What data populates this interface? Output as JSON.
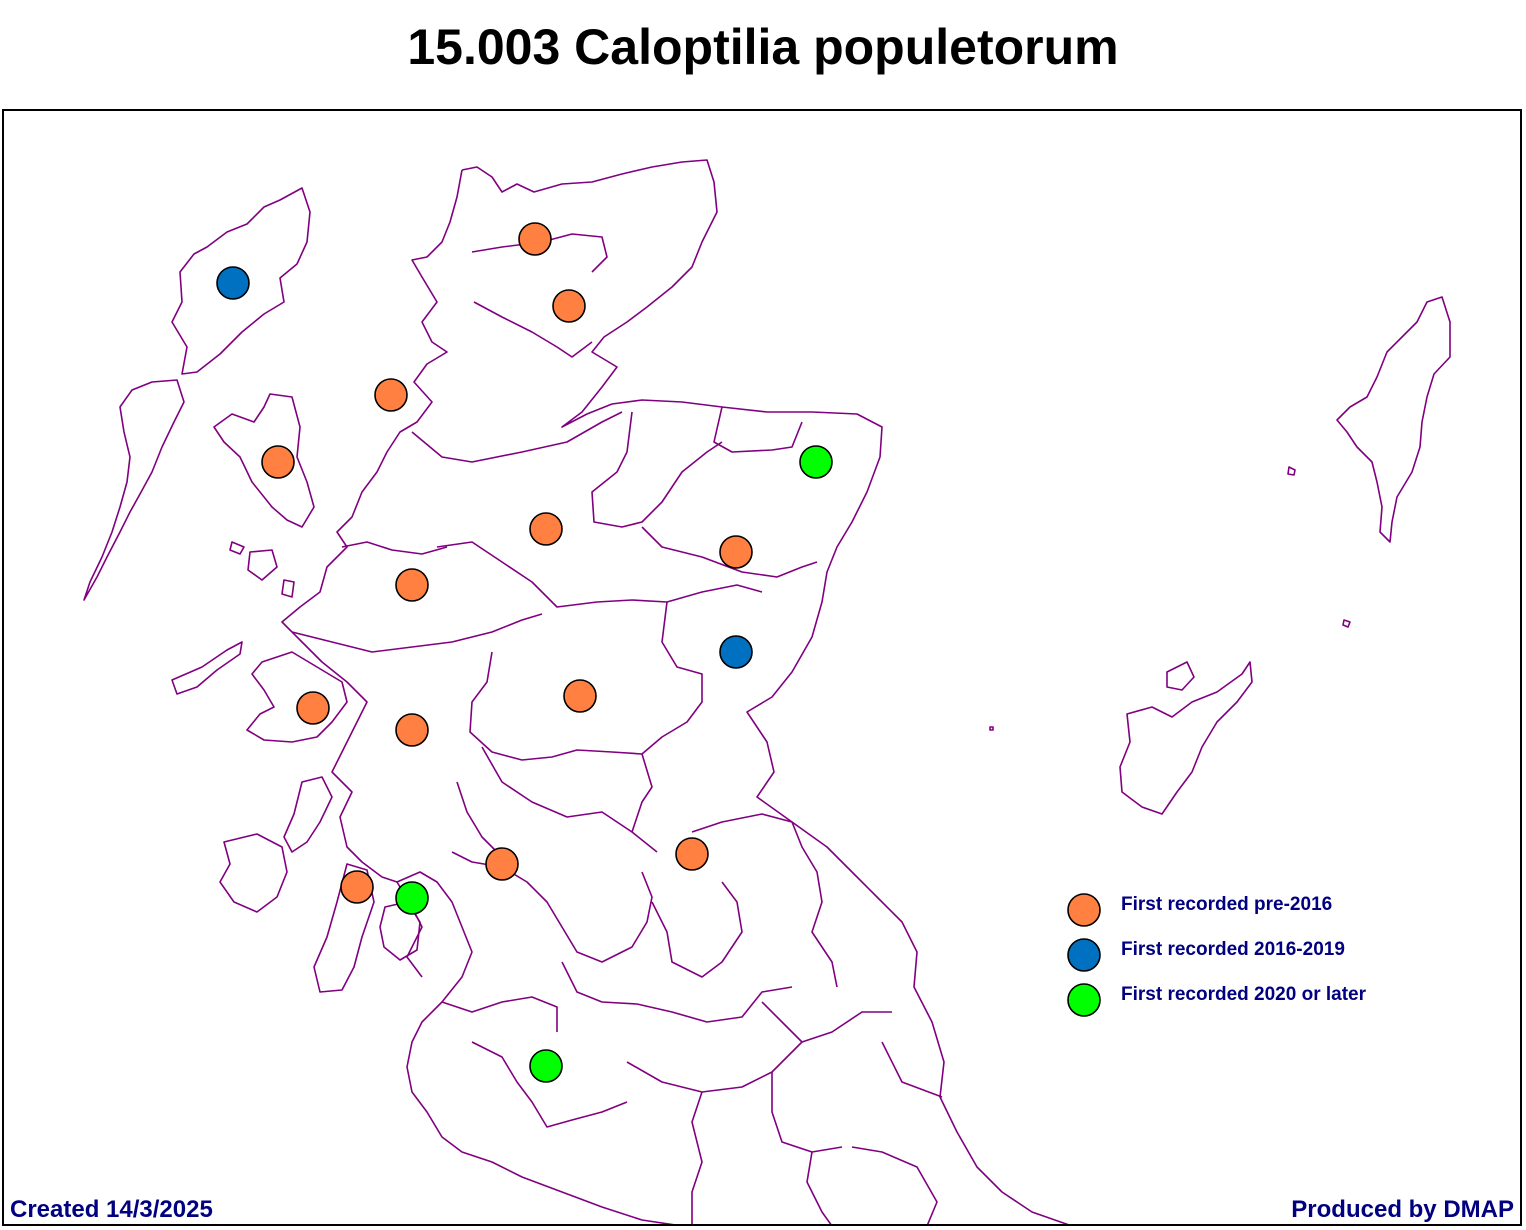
{
  "title": "15.003 Caloptilia populetorum",
  "legend": [
    {
      "label": "First recorded pre-2016",
      "color": "#FF8040"
    },
    {
      "label": "First recorded 2016-2019",
      "color": "#0070C0"
    },
    {
      "label": "First recorded 2020 or later",
      "color": "#00FF00"
    }
  ],
  "footer": {
    "created": "Created 14/3/2025",
    "produced": "Produced by DMAP"
  },
  "colors": {
    "boundary": "#800080",
    "text": "#000080"
  }
}
